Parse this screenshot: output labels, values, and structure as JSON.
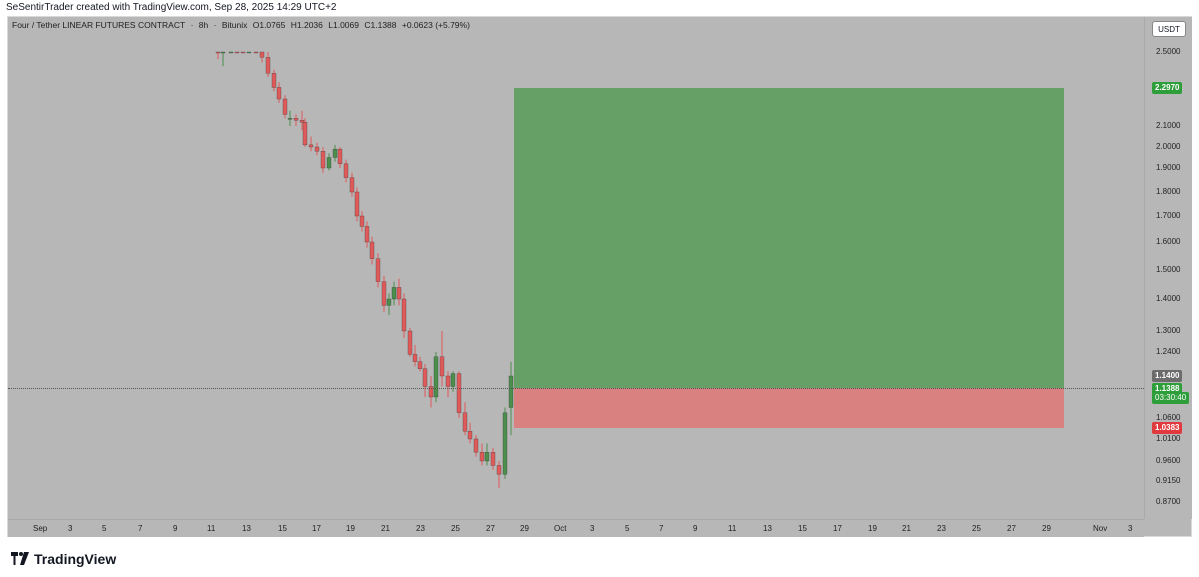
{
  "header": {
    "caption": "SeSentirTrader created with TradingView.com, Sep 28, 2025 14:29 UTC+2"
  },
  "legend": {
    "symbol": "Four / Tether LINEAR FUTURES CONTRACT",
    "interval": "8h",
    "exchange": "Bitunix",
    "open": "O1.0765",
    "high": "H1.2036",
    "low": "L1.0069",
    "close": "C1.1388",
    "change": "+0.0623 (+5.79%)"
  },
  "price_axis": {
    "currency": "USDT",
    "ticks": [
      "2.5000",
      "2.2970",
      "2.1000",
      "2.0000",
      "1.9000",
      "1.8000",
      "1.7000",
      "1.6000",
      "1.5000",
      "1.4000",
      "1.3000",
      "1.2400",
      "1.1400",
      "1.1388",
      "1.0600",
      "1.0383",
      "1.0100",
      "0.9600",
      "0.9150",
      "0.8700"
    ],
    "badges": {
      "target": {
        "label": "2.2970",
        "color": "#2e9e3a"
      },
      "entry": {
        "label": "1.1400",
        "color": "#6b6b6b"
      },
      "last": {
        "label": "1.1388",
        "color": "#2e9e3a"
      },
      "countdown": {
        "label": "03:30:40",
        "color": "#2e9e3a"
      },
      "stop": {
        "label": "1.0383",
        "color": "#e03a3e"
      }
    }
  },
  "time_axis": {
    "ticks": [
      "Sep",
      "3",
      "5",
      "7",
      "9",
      "11",
      "13",
      "15",
      "17",
      "19",
      "21",
      "23",
      "25",
      "27",
      "29",
      "Oct",
      "3",
      "5",
      "7",
      "9",
      "11",
      "13",
      "15",
      "17",
      "19",
      "21",
      "23",
      "25",
      "27",
      "29",
      "Nov",
      "3"
    ]
  },
  "position_tool": {
    "type": "long",
    "entry": 1.14,
    "target": 2.297,
    "stop": 1.0383,
    "profit_color": "#66a066",
    "loss_color": "#d98080"
  },
  "brand": {
    "name": "TradingView"
  },
  "colors": {
    "bull": "#4c8f4c",
    "bear": "#e05a5a",
    "background": "#b7b7b7"
  }
}
